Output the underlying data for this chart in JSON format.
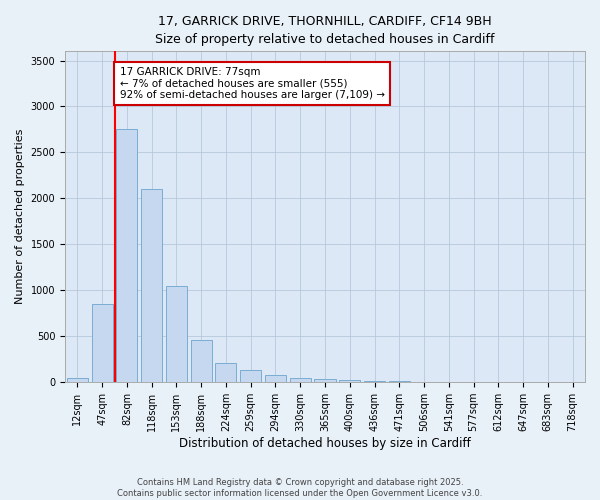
{
  "title_line1": "17, GARRICK DRIVE, THORNHILL, CARDIFF, CF14 9BH",
  "title_line2": "Size of property relative to detached houses in Cardiff",
  "xlabel": "Distribution of detached houses by size in Cardiff",
  "ylabel": "Number of detached properties",
  "bar_color": "#c5d8ef",
  "bar_edge_color": "#7aadd4",
  "bg_color": "#dce8f5",
  "fig_bg_color": "#e8f0f8",
  "categories": [
    "12sqm",
    "47sqm",
    "82sqm",
    "118sqm",
    "153sqm",
    "188sqm",
    "224sqm",
    "259sqm",
    "294sqm",
    "330sqm",
    "365sqm",
    "400sqm",
    "436sqm",
    "471sqm",
    "506sqm",
    "541sqm",
    "577sqm",
    "612sqm",
    "647sqm",
    "683sqm",
    "718sqm"
  ],
  "values": [
    50,
    850,
    2750,
    2100,
    1050,
    460,
    210,
    130,
    75,
    50,
    30,
    20,
    15,
    10,
    5,
    3,
    2,
    2,
    1,
    1,
    1
  ],
  "red_line_index": 2,
  "annotation_text": "17 GARRICK DRIVE: 77sqm\n← 7% of detached houses are smaller (555)\n92% of semi-detached houses are larger (7,109) →",
  "annotation_box_color": "#ffffff",
  "annotation_border_color": "#cc0000",
  "footer_line1": "Contains HM Land Registry data © Crown copyright and database right 2025.",
  "footer_line2": "Contains public sector information licensed under the Open Government Licence v3.0.",
  "ylim": [
    0,
    3600
  ],
  "yticks": [
    0,
    500,
    1000,
    1500,
    2000,
    2500,
    3000,
    3500
  ],
  "grid_color": "#b8c8dc",
  "title_fontsize": 9,
  "ylabel_fontsize": 8,
  "xlabel_fontsize": 8.5,
  "tick_fontsize": 7,
  "footer_fontsize": 6,
  "annot_fontsize": 7.5
}
